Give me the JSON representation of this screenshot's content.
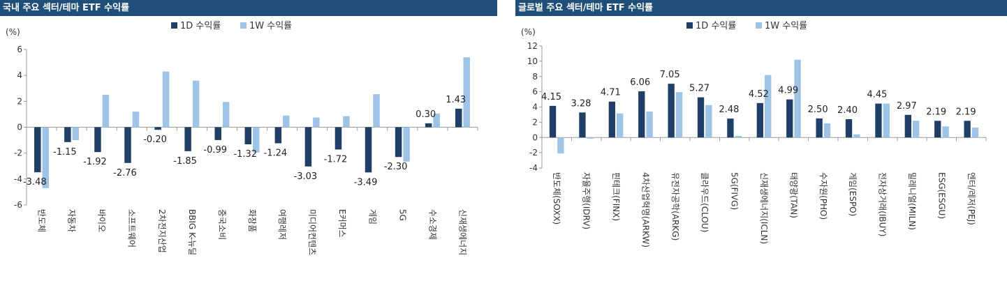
{
  "panels": [
    {
      "title": "국내 주요 섹터/테마 ETF 수익률",
      "unit_label": "(%)",
      "legend": [
        "1D 수익률",
        "1W 수익률"
      ],
      "colors": {
        "d1": "#1f3f66",
        "w1": "#9dc3e6"
      }
    },
    {
      "title": "글로벌 주요 섹터/테마 ETF 수익률",
      "unit_label": "(%)",
      "legend": [
        "1D 수익률",
        "1W 수익률"
      ],
      "colors": {
        "d1": "#1f3f66",
        "w1": "#9dc3e6"
      }
    }
  ],
  "chart_data": [
    {
      "type": "bar",
      "title": "국내 주요 섹터/테마 ETF 수익률",
      "ylabel": "(%)",
      "ylim": [
        -6,
        6
      ],
      "yticks": [
        -6,
        -4,
        -2,
        0,
        2,
        4,
        6
      ],
      "categories": [
        "반도체",
        "자동차",
        "바이오",
        "소프트웨어",
        "2차전지산업",
        "BBIG K-뉴딜",
        "중국소비",
        "화장품",
        "여행레저",
        "미디어컨텐츠",
        "E커머스",
        "게임",
        "5G",
        "수소경제",
        "신재생에너지"
      ],
      "series": [
        {
          "name": "1D 수익률",
          "values": [
            -3.48,
            -1.15,
            -1.92,
            -2.76,
            -0.2,
            -1.85,
            -0.99,
            -1.32,
            -1.24,
            -3.03,
            -1.72,
            -3.49,
            -2.3,
            0.3,
            1.43
          ]
        },
        {
          "name": "1W 수익률",
          "values": [
            -4.7,
            -1.0,
            2.5,
            1.2,
            4.3,
            3.6,
            1.95,
            -1.95,
            0.9,
            0.75,
            0.85,
            2.55,
            -2.65,
            1.05,
            5.4
          ]
        }
      ],
      "data_labels": [
        "-3.48",
        "-1.15",
        "-1.92",
        "-2.76",
        "-0.20",
        "-1.85",
        "-0.99",
        "-1.32",
        "-1.24",
        "-3.03",
        "-1.72",
        "-3.49",
        "-2.30",
        "0.30",
        "1.43"
      ],
      "grid": false,
      "legend_position": "top"
    },
    {
      "type": "bar",
      "title": "글로벌 주요 섹터/테마 ETF 수익률",
      "ylabel": "(%)",
      "ylim": [
        -4,
        12
      ],
      "yticks": [
        -4,
        -2,
        0,
        2,
        4,
        6,
        8,
        10,
        12
      ],
      "categories": [
        "반도체(SOXX)",
        "자율주행(IDRV)",
        "핀테크(FINX)",
        "4차산업혁명(ARKW)",
        "유전자공학(ARKG)",
        "클라우드(CLOU)",
        "5G(FIVG)",
        "신재생에너지(ICLN)",
        "태양광(TAN)",
        "수자원(PHO)",
        "게임(ESPO)",
        "전자상거래(IBUY)",
        "밀레니얼(MILN)",
        "ESG(ESGU)",
        "엔터/레저(PEJ)"
      ],
      "series": [
        {
          "name": "1D 수익률",
          "values": [
            4.15,
            3.28,
            4.71,
            6.06,
            7.05,
            5.27,
            2.48,
            4.52,
            4.99,
            2.5,
            2.4,
            4.45,
            2.97,
            2.19,
            2.19
          ]
        },
        {
          "name": "1W 수익률",
          "values": [
            -2.1,
            -0.15,
            3.15,
            3.4,
            5.95,
            4.25,
            0.2,
            8.2,
            10.2,
            1.85,
            0.4,
            4.45,
            2.2,
            1.45,
            1.3
          ]
        }
      ],
      "data_labels": [
        "4.15",
        "3.28",
        "4.71",
        "6.06",
        "7.05",
        "5.27",
        "2.48",
        "4.52",
        "4.99",
        "2.50",
        "2.40",
        "4.45",
        "2.97",
        "2.19",
        "2.19"
      ],
      "grid": false,
      "legend_position": "top"
    }
  ]
}
